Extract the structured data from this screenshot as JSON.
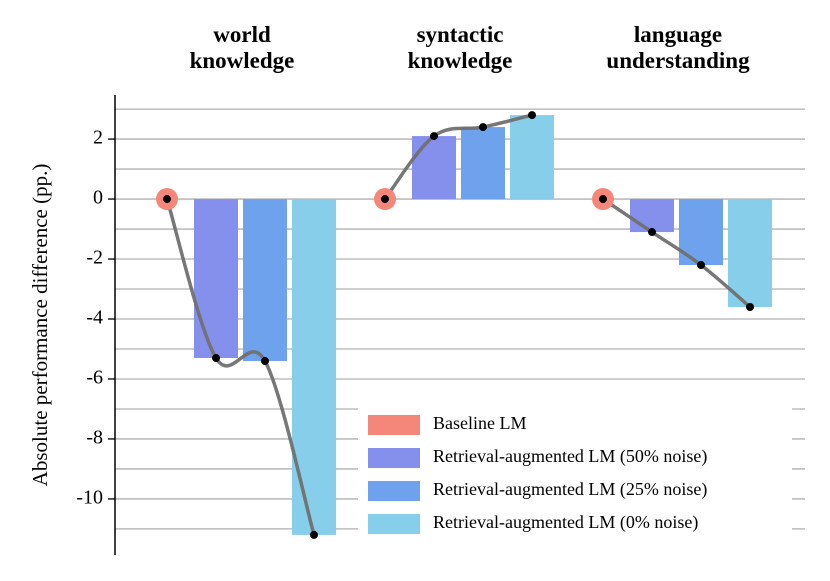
{
  "chart_data": {
    "type": "grouped_bar_line",
    "ylabel": "Absolute performance difference (pp.)",
    "categories": [
      "world knowledge",
      "syntactic knowledge",
      "language understanding"
    ],
    "series": [
      {
        "name": "Baseline LM",
        "color": "#f4877a",
        "values": [
          0,
          0,
          0
        ]
      },
      {
        "name": "Retrieval-augmented LM (50% noise)",
        "color": "#8590ec",
        "values": [
          -5.3,
          2.1,
          -1.1
        ]
      },
      {
        "name": "Retrieval-augmented LM (25% noise)",
        "color": "#6ea2ec",
        "values": [
          -5.4,
          2.4,
          -2.2
        ]
      },
      {
        "name": "Retrieval-augmented LM (0% noise)",
        "color": "#87ceea",
        "values": [
          -11.2,
          2.8,
          -3.6
        ]
      }
    ],
    "ylim": [
      -11.87,
      3.47
    ],
    "yticks": [
      2,
      0,
      -2,
      -4,
      -6,
      -8,
      -10
    ],
    "yminorticks": [
      3,
      1,
      -1,
      -3,
      -5,
      -7,
      -9,
      -11
    ],
    "grid": true,
    "line_color": "#707070",
    "legend": "lower right"
  }
}
